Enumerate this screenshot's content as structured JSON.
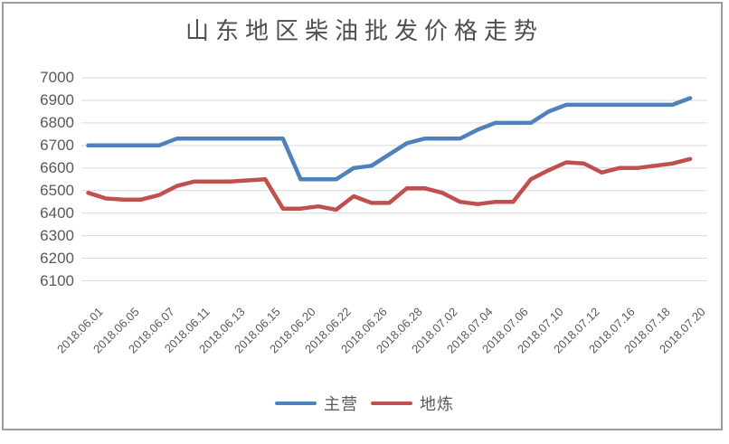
{
  "title": "山东地区柴油批发价格走势",
  "legend": {
    "items": [
      {
        "label": "主营",
        "color": "#4F81BD"
      },
      {
        "label": "地炼",
        "color": "#C0504D"
      }
    ]
  },
  "axes": {
    "y_tick_labels": [
      "7000",
      "6900",
      "6800",
      "6700",
      "6600",
      "6500",
      "6400",
      "6300",
      "6200",
      "6100"
    ],
    "x_tick_labels": [
      "2018.06.01",
      "2018.06.05",
      "2018.06.07",
      "2018.06.11",
      "2018.06.13",
      "2018.06.15",
      "2018.06.20",
      "2018.06.22",
      "2018.06.26",
      "2018.06.28",
      "2018.07.02",
      "2018.07.04",
      "2018.07.06",
      "2018.07.10",
      "2018.07.12",
      "2018.07.16",
      "2018.07.18",
      "2018.07.20"
    ]
  },
  "chart_data": {
    "type": "line",
    "title": "山东地区柴油批发价格走势",
    "x": [
      "2018.06.01",
      "2018.06.04",
      "2018.06.05",
      "2018.06.06",
      "2018.06.07",
      "2018.06.08",
      "2018.06.11",
      "2018.06.12",
      "2018.06.13",
      "2018.06.14",
      "2018.06.15",
      "2018.06.19",
      "2018.06.20",
      "2018.06.21",
      "2018.06.22",
      "2018.06.25",
      "2018.06.26",
      "2018.06.27",
      "2018.06.28",
      "2018.06.29",
      "2018.07.02",
      "2018.07.03",
      "2018.07.04",
      "2018.07.05",
      "2018.07.06",
      "2018.07.09",
      "2018.07.10",
      "2018.07.11",
      "2018.07.12",
      "2018.07.13",
      "2018.07.16",
      "2018.07.17",
      "2018.07.18",
      "2018.07.19",
      "2018.07.20"
    ],
    "x_tick_labels": [
      "2018.06.01",
      "2018.06.05",
      "2018.06.07",
      "2018.06.11",
      "2018.06.13",
      "2018.06.15",
      "2018.06.20",
      "2018.06.22",
      "2018.06.26",
      "2018.06.28",
      "2018.07.02",
      "2018.07.04",
      "2018.07.06",
      "2018.07.10",
      "2018.07.12",
      "2018.07.16",
      "2018.07.18",
      "2018.07.20"
    ],
    "series": [
      {
        "name": "主营",
        "color": "#4F81BD",
        "values": [
          6700,
          6700,
          6700,
          6700,
          6700,
          6730,
          6730,
          6730,
          6730,
          6730,
          6730,
          6730,
          6550,
          6550,
          6550,
          6600,
          6610,
          6660,
          6710,
          6730,
          6730,
          6730,
          6770,
          6800,
          6800,
          6800,
          6850,
          6880,
          6880,
          6880,
          6880,
          6880,
          6880,
          6880,
          6910
        ]
      },
      {
        "name": "地炼",
        "color": "#C0504D",
        "values": [
          6490,
          6465,
          6460,
          6460,
          6480,
          6520,
          6540,
          6540,
          6540,
          6545,
          6550,
          6420,
          6420,
          6430,
          6415,
          6475,
          6445,
          6445,
          6510,
          6510,
          6490,
          6450,
          6440,
          6450,
          6450,
          6550,
          6590,
          6625,
          6620,
          6580,
          6600,
          6600,
          6610,
          6620,
          6640
        ]
      }
    ],
    "ylim": [
      6100,
      7000
    ],
    "y_ticks": [
      7000,
      6900,
      6800,
      6700,
      6600,
      6500,
      6400,
      6300,
      6200,
      6100
    ],
    "grid": "horizontal-only",
    "legend_position": "bottom",
    "colors": {
      "gridline": "#D9D9D9",
      "axis_text": "#595959",
      "title_text": "#4F4F4F",
      "frame_border": "#9C9C9C"
    }
  }
}
